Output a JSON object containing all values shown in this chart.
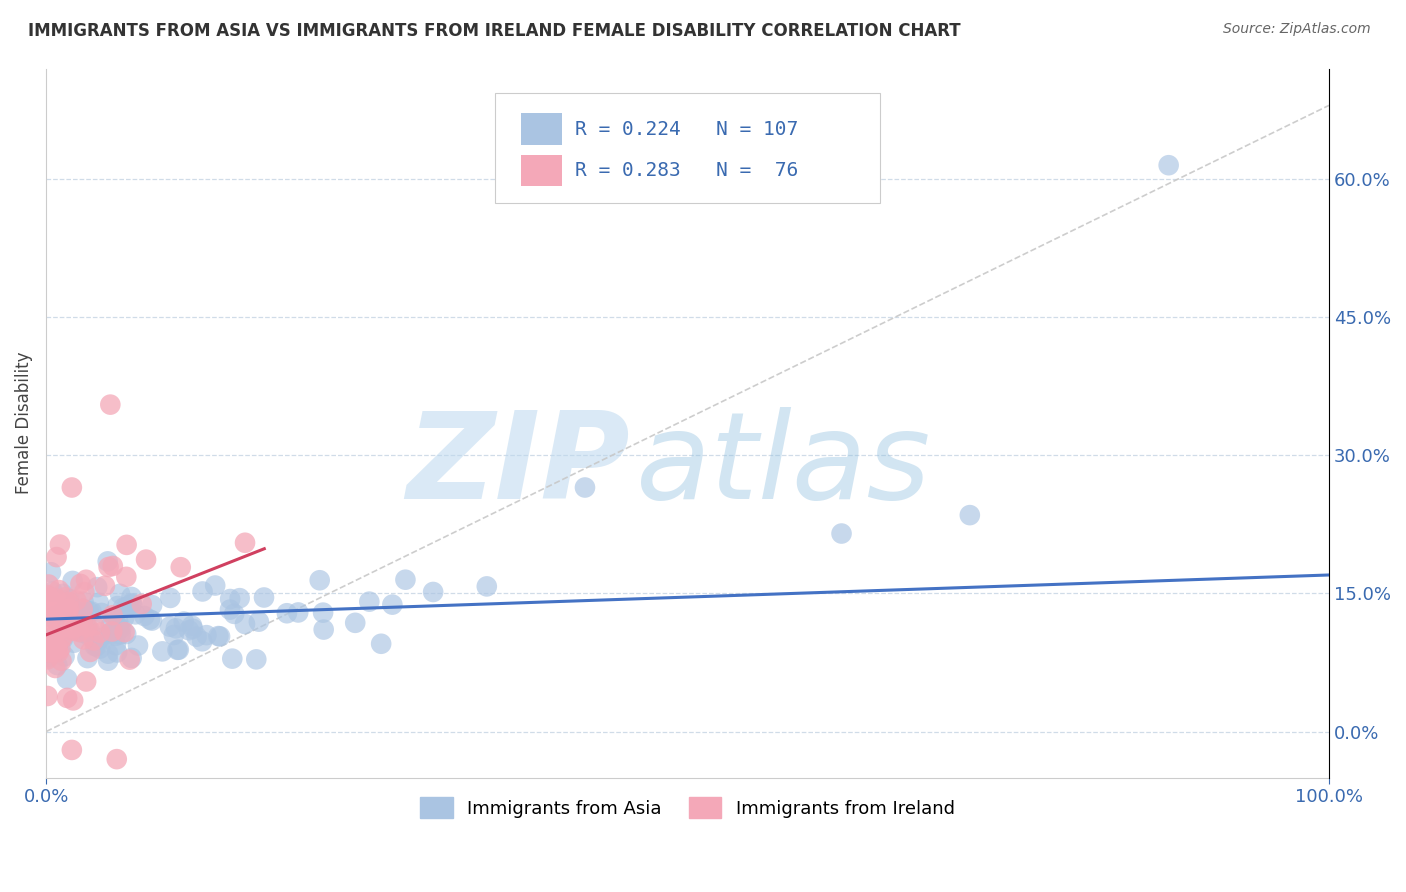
{
  "title": "IMMIGRANTS FROM ASIA VS IMMIGRANTS FROM IRELAND FEMALE DISABILITY CORRELATION CHART",
  "source": "Source: ZipAtlas.com",
  "ylabel": "Female Disability",
  "legend_label1": "Immigrants from Asia",
  "legend_label2": "Immigrants from Ireland",
  "R1": "0.224",
  "N1": "107",
  "R2": "0.283",
  "N2": "76",
  "color_asia": "#aac4e2",
  "color_ireland": "#f4a8b8",
  "line_color_asia": "#4472c4",
  "line_color_ireland": "#d04060",
  "ref_line_color": "#c8c8c8",
  "grid_color": "#d0dce8",
  "bg_color": "#ffffff",
  "xlim": [
    0.0,
    1.0
  ],
  "ylim": [
    -0.05,
    0.72
  ],
  "yticks": [
    0.0,
    0.15,
    0.3,
    0.45,
    0.6
  ],
  "ytick_labels": [
    "0.0%",
    "15.0%",
    "30.0%",
    "45.0%",
    "60.0%"
  ],
  "xtick_labels": [
    "0.0%",
    "100.0%"
  ],
  "watermark_zip": "ZIP",
  "watermark_atlas": "atlas",
  "n_asia": 107,
  "n_ireland": 76
}
